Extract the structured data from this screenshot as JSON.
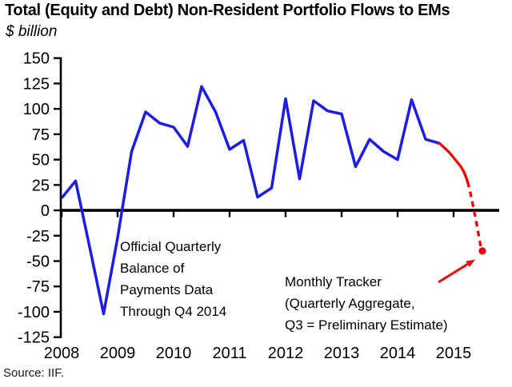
{
  "header": {
    "title": "Total (Equity and Debt) Non-Resident Portfolio Flows to EMs",
    "subtitle": "$ billion"
  },
  "source": "Source: IIF.",
  "annotations": {
    "official": "Official Quarterly\nBalance of\nPayments Data\nThrough Q4 2014",
    "tracker": "Monthly Tracker\n(Quarterly Aggregate,\nQ3 = Preliminary Estimate)"
  },
  "colors": {
    "official_line": "#1D1DE3",
    "tracker_line": "#EE0505",
    "axis": "#000000"
  },
  "chart_data": {
    "type": "line",
    "title": "Total (Equity and Debt) Non-Resident Portfolio Flows to EMs",
    "ylabel": "$ billion",
    "ylim": [
      -125,
      150
    ],
    "ytick_step": 25,
    "x_tick_labels": [
      "2008",
      "2009",
      "2010",
      "2011",
      "2012",
      "2013",
      "2014",
      "2015"
    ],
    "frequency": "quarterly",
    "grid": false,
    "legend": "none",
    "series": [
      {
        "name": "Official Quarterly Balance of Payments Data Through Q4 2014",
        "color": "#1D1DE3",
        "style": "solid",
        "start": "2008Q1",
        "values": [
          12,
          29,
          -36,
          -102,
          -27,
          58,
          97,
          86,
          82,
          63,
          122,
          97,
          60,
          69,
          13,
          22,
          110,
          31,
          108,
          98,
          95,
          43,
          70,
          58,
          50,
          109,
          70,
          66
        ]
      },
      {
        "name": "Monthly Tracker (Quarterly Aggregate, Q3 = Preliminary Estimate)",
        "color": "#EE0505",
        "style": "solid-then-dashed",
        "x": [
          "2014Q4",
          "2015Q1",
          "2015Q2",
          "2015Q3"
        ],
        "values": [
          66,
          52,
          28,
          -40
        ],
        "dashed_from": "2015Q2",
        "marker_at": "2015Q3",
        "marker_value": -40
      }
    ]
  }
}
